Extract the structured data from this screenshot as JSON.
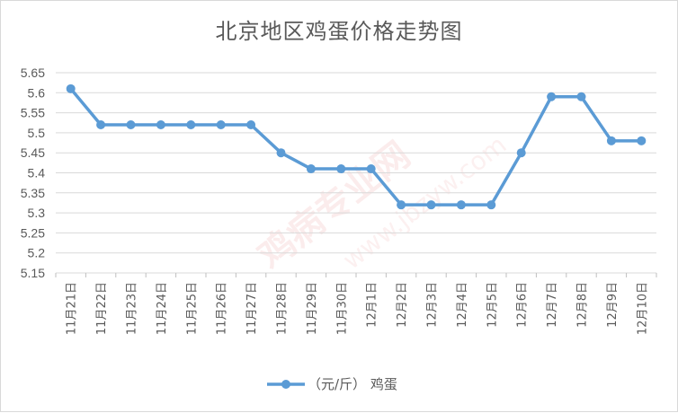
{
  "chart_data": {
    "type": "line",
    "title": "北京地区鸡蛋价格走势图",
    "categories": [
      "11月21日",
      "11月22日",
      "11月23日",
      "11月24日",
      "11月25日",
      "11月26日",
      "11月27日",
      "11月28日",
      "11月29日",
      "11月30日",
      "12月1日",
      "12月2日",
      "12月3日",
      "12月4日",
      "12月5日",
      "12月6日",
      "12月7日",
      "12月8日",
      "12月9日",
      "12月10日"
    ],
    "series": [
      {
        "name": "（元/斤） 鸡蛋",
        "values": [
          5.61,
          5.52,
          5.52,
          5.52,
          5.52,
          5.52,
          5.52,
          5.45,
          5.41,
          5.41,
          5.41,
          5.32,
          5.32,
          5.32,
          5.32,
          5.45,
          5.59,
          5.59,
          5.48,
          5.48
        ],
        "color": "#5b9bd5"
      }
    ],
    "ylim": [
      5.15,
      5.65
    ],
    "yticks": [
      "5.15",
      "5.2",
      "5.25",
      "5.3",
      "5.35",
      "5.4",
      "5.45",
      "5.5",
      "5.55",
      "5.6",
      "5.65"
    ],
    "grid": true,
    "legend": "bottom",
    "xlabel": "",
    "ylabel": ""
  },
  "watermark": {
    "text": "鸡病专业网",
    "url": "www.jbzyw.com"
  }
}
